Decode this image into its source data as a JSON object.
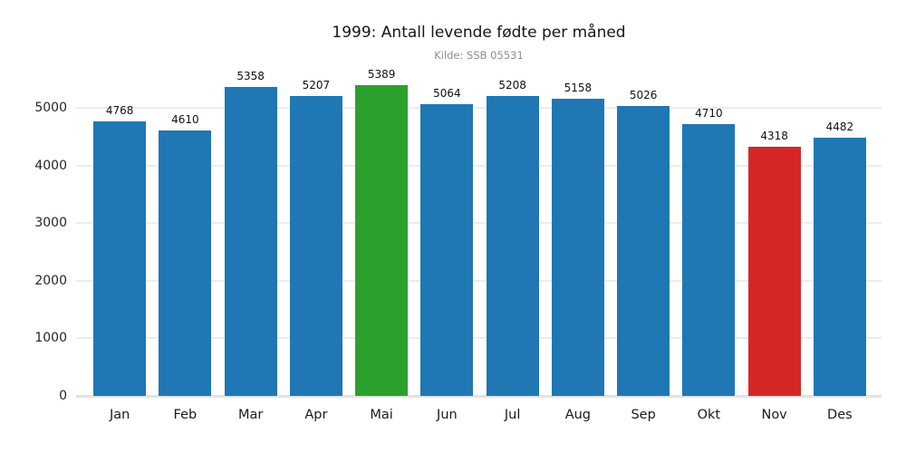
{
  "chart_data": {
    "type": "bar",
    "title": "1999: Antall levende fødte per måned",
    "subtitle": "Kilde: SSB 05531",
    "categories": [
      "Jan",
      "Feb",
      "Mar",
      "Apr",
      "Mai",
      "Jun",
      "Jul",
      "Aug",
      "Sep",
      "Okt",
      "Nov",
      "Des"
    ],
    "values": [
      4768,
      4610,
      5358,
      5207,
      5389,
      5064,
      5208,
      5158,
      5026,
      4710,
      4318,
      4482
    ],
    "value_labels_shown": true,
    "bar_colors": [
      "#1f77b4",
      "#1f77b4",
      "#1f77b4",
      "#1f77b4",
      "#2ca02c",
      "#1f77b4",
      "#1f77b4",
      "#1f77b4",
      "#1f77b4",
      "#1f77b4",
      "#d62728",
      "#1f77b4"
    ],
    "color_semantics": {
      "default": "#1f77b4",
      "highest_month": "#2ca02c",
      "lowest_month": "#d62728"
    },
    "highlight": {
      "highest": {
        "category": "Mai",
        "value": 5389
      },
      "lowest": {
        "category": "Nov",
        "value": 4318
      }
    },
    "xlabel": "",
    "ylabel": "",
    "ylim": [
      0,
      5620
    ],
    "yticks": [
      0,
      1000,
      2000,
      3000,
      4000,
      5000
    ],
    "grid": "horizontal",
    "legend": "none",
    "styling": {
      "gridline_color": "#ececec",
      "axis_line_color": "#e3e3e3",
      "title_color": "#141414",
      "subtitle_color": "#8e8e8e",
      "tick_label_color": "#262626",
      "background": "#ffffff"
    }
  }
}
